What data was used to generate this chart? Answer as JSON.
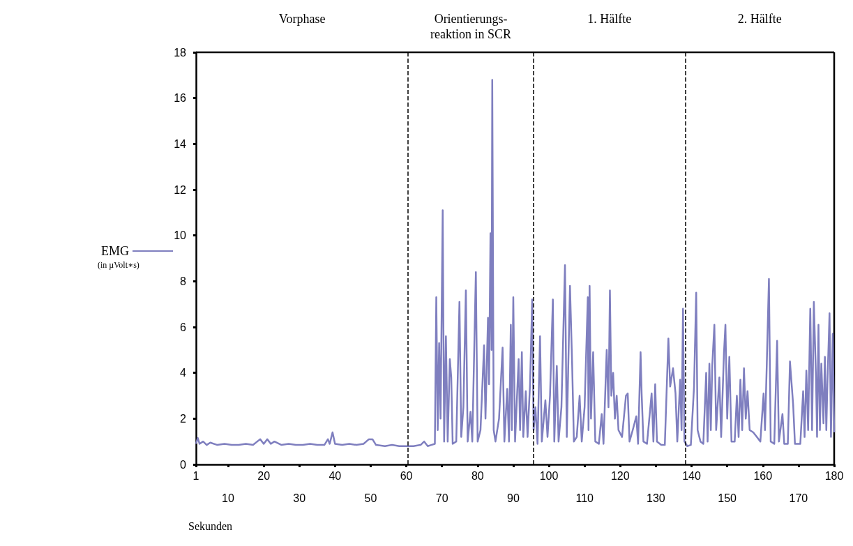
{
  "chart_data": {
    "type": "line",
    "xlabel": "Sekunden",
    "ylabel": "(in µVolt∗s)",
    "annotations": [
      "Vorphase",
      "Orientierungs-\nreaktion in SCR",
      "1. Hälfte",
      "2. Hälfte"
    ],
    "xlim": [
      1,
      180
    ],
    "xticks": [
      1,
      {
        "value": 10,
        "label": null
      },
      20,
      {
        "value": 30,
        "label": null
      },
      40,
      {
        "value": 50,
        "label": null
      },
      60,
      {
        "value": 70,
        "label": null
      },
      80,
      {
        "value": 90,
        "label": null
      },
      100,
      {
        "value": 110,
        "label": null
      },
      120,
      {
        "value": 130,
        "label": null
      },
      140,
      {
        "value": 150,
        "label": null
      },
      160,
      {
        "value": 170,
        "label": null
      },
      180
    ],
    "x2lim": [
      1,
      180
    ],
    "x2ticks": [
      10,
      30,
      50,
      70,
      90,
      110,
      130,
      150,
      170
    ],
    "ylim": [
      0,
      18
    ],
    "yticks": [
      0,
      2,
      4,
      6,
      8,
      10,
      12,
      14,
      16,
      18
    ],
    "grid": false,
    "legend": "left",
    "marker": "none",
    "line_style": "solid",
    "ref_lines": [
      {
        "axis": "x",
        "value": 60.5,
        "color": "#000000",
        "line_style": "dashed"
      },
      {
        "axis": "x",
        "value": 95.7,
        "color": "#000000",
        "line_style": "dashed"
      },
      {
        "axis": "x",
        "value": 138.2,
        "color": "#000000",
        "line_style": "dashed"
      }
    ],
    "series": [
      {
        "name": "EMG",
        "color": "#7f7fbf",
        "x": [
          1,
          1.5,
          2,
          3,
          4,
          5,
          7,
          9,
          11,
          13,
          15,
          17,
          19,
          20,
          21,
          22,
          23,
          25,
          27,
          29,
          31,
          33,
          35,
          37,
          38,
          38.5,
          39.3,
          40,
          42,
          44,
          46,
          48,
          49.5,
          50.5,
          51.5,
          54,
          56,
          58,
          60,
          62,
          64,
          65,
          66,
          67,
          68,
          68.4,
          68.8,
          69.2,
          69.6,
          70.2,
          70.6,
          71.1,
          71.6,
          72.2,
          72.6,
          73,
          74,
          74.9,
          75.4,
          76,
          76.7,
          77.2,
          78,
          78.5,
          79.5,
          80,
          80.8,
          81.8,
          82.2,
          82.9,
          83.2,
          83.6,
          83.9,
          84.1,
          84.5,
          85,
          86,
          87,
          87.5,
          88.3,
          88.8,
          89.3,
          89.6,
          90,
          90.5,
          91.5,
          91.9,
          92.4,
          92.8,
          93.5,
          94,
          94.7,
          95.3,
          95.7,
          96.2,
          96.8,
          97.5,
          98,
          99,
          99.6,
          100.3,
          101.1,
          101.5,
          102.2,
          102.7,
          103.5,
          104.5,
          105,
          105.9,
          106.5,
          107,
          107.8,
          108.6,
          109.2,
          110,
          110.9,
          111.1,
          111.4,
          111.8,
          112.4,
          113,
          114,
          114.8,
          115.3,
          116.2,
          116.7,
          117.1,
          117.5,
          118,
          118.5,
          119,
          119.5,
          120.5,
          121.6,
          122.1,
          122.6,
          123.5,
          124.5,
          125,
          125.7,
          126,
          126.5,
          127.5,
          128.8,
          129.3,
          129.8,
          130.3,
          131.5,
          132.5,
          133.5,
          134,
          134.8,
          135.5,
          136,
          136.8,
          137.2,
          137.6,
          138,
          138.8,
          139.8,
          140.7,
          141.3,
          141.7,
          142.5,
          143.3,
          144.1,
          144.5,
          145,
          145.4,
          145.8,
          146.4,
          146.9,
          147.8,
          148.3,
          149.1,
          149.5,
          150,
          150.6,
          151.2,
          152.1,
          152.7,
          153.2,
          153.7,
          154.2,
          154.7,
          155.2,
          155.7,
          156.3,
          157.3,
          158.3,
          159.3,
          160.2,
          160.6,
          161.1,
          161.7,
          162.2,
          163.2,
          164,
          164.5,
          165.5,
          166,
          167,
          167.6,
          168.5,
          169,
          170.5,
          171.3,
          171.7,
          172.2,
          172.7,
          173.3,
          173.8,
          174.3,
          174.9,
          175.2,
          175.6,
          176,
          176.4,
          177,
          177.4,
          177.8,
          178.1,
          178.7,
          179.1,
          179.6,
          180
        ],
        "values": [
          0.9,
          1.15,
          0.9,
          1.0,
          0.85,
          0.95,
          0.85,
          0.9,
          0.85,
          0.85,
          0.9,
          0.85,
          1.1,
          0.9,
          1.1,
          0.9,
          1.0,
          0.85,
          0.9,
          0.85,
          0.85,
          0.9,
          0.85,
          0.85,
          1.1,
          0.9,
          1.4,
          0.9,
          0.85,
          0.9,
          0.85,
          0.9,
          1.1,
          1.1,
          0.85,
          0.8,
          0.85,
          0.8,
          0.8,
          0.8,
          0.85,
          1.0,
          0.8,
          0.85,
          0.9,
          7.3,
          1.5,
          5.3,
          2.0,
          11.1,
          1.0,
          5.6,
          1.0,
          4.6,
          3.8,
          0.9,
          1.0,
          7.1,
          1.2,
          2.5,
          7.6,
          1.0,
          2.3,
          1.0,
          8.4,
          1.0,
          1.5,
          5.2,
          2.0,
          6.4,
          3.5,
          10.1,
          5.0,
          16.8,
          1.5,
          1.0,
          2.0,
          5.1,
          1.0,
          3.3,
          1.0,
          6.1,
          1.5,
          7.3,
          1.0,
          4.6,
          1.5,
          4.9,
          1.2,
          3.2,
          1.2,
          3.5,
          7.2,
          1.5,
          2.5,
          0.9,
          5.6,
          1.0,
          2.8,
          1.2,
          3.0,
          7.2,
          1.0,
          4.3,
          1.0,
          2.5,
          8.7,
          1.2,
          7.8,
          4.4,
          1.0,
          1.2,
          3.0,
          1.0,
          2.5,
          7.3,
          1.5,
          7.8,
          2.0,
          4.9,
          1.0,
          0.9,
          2.2,
          0.9,
          5.0,
          2.5,
          7.6,
          3.0,
          4.0,
          2.0,
          3.0,
          1.5,
          1.2,
          3.0,
          3.1,
          1.0,
          1.5,
          2.1,
          0.9,
          4.9,
          3.1,
          1.0,
          0.9,
          3.1,
          1.0,
          3.5,
          1.0,
          0.85,
          0.85,
          5.5,
          3.4,
          4.2,
          3.1,
          1.0,
          3.7,
          1.5,
          6.8,
          1.0,
          0.8,
          0.85,
          3.4,
          7.5,
          1.5,
          1.0,
          0.9,
          4.0,
          1.0,
          4.4,
          1.5,
          4.3,
          6.1,
          1.5,
          3.8,
          1.2,
          4.9,
          6.1,
          2.0,
          4.7,
          1.0,
          1.0,
          3.0,
          1.2,
          3.7,
          1.5,
          4.2,
          2.0,
          3.2,
          1.5,
          1.4,
          1.2,
          1.0,
          3.1,
          1.5,
          4.4,
          8.1,
          1.0,
          0.9,
          5.4,
          1.0,
          2.2,
          0.9,
          0.9,
          4.5,
          2.6,
          0.9,
          0.9,
          3.2,
          1.2,
          4.1,
          1.5,
          6.8,
          1.5,
          7.1,
          3.8,
          1.2,
          6.1,
          1.5,
          4.4,
          1.8,
          4.7,
          1.5,
          3.5,
          6.6,
          1.2,
          5.7,
          1.4
        ]
      }
    ]
  }
}
